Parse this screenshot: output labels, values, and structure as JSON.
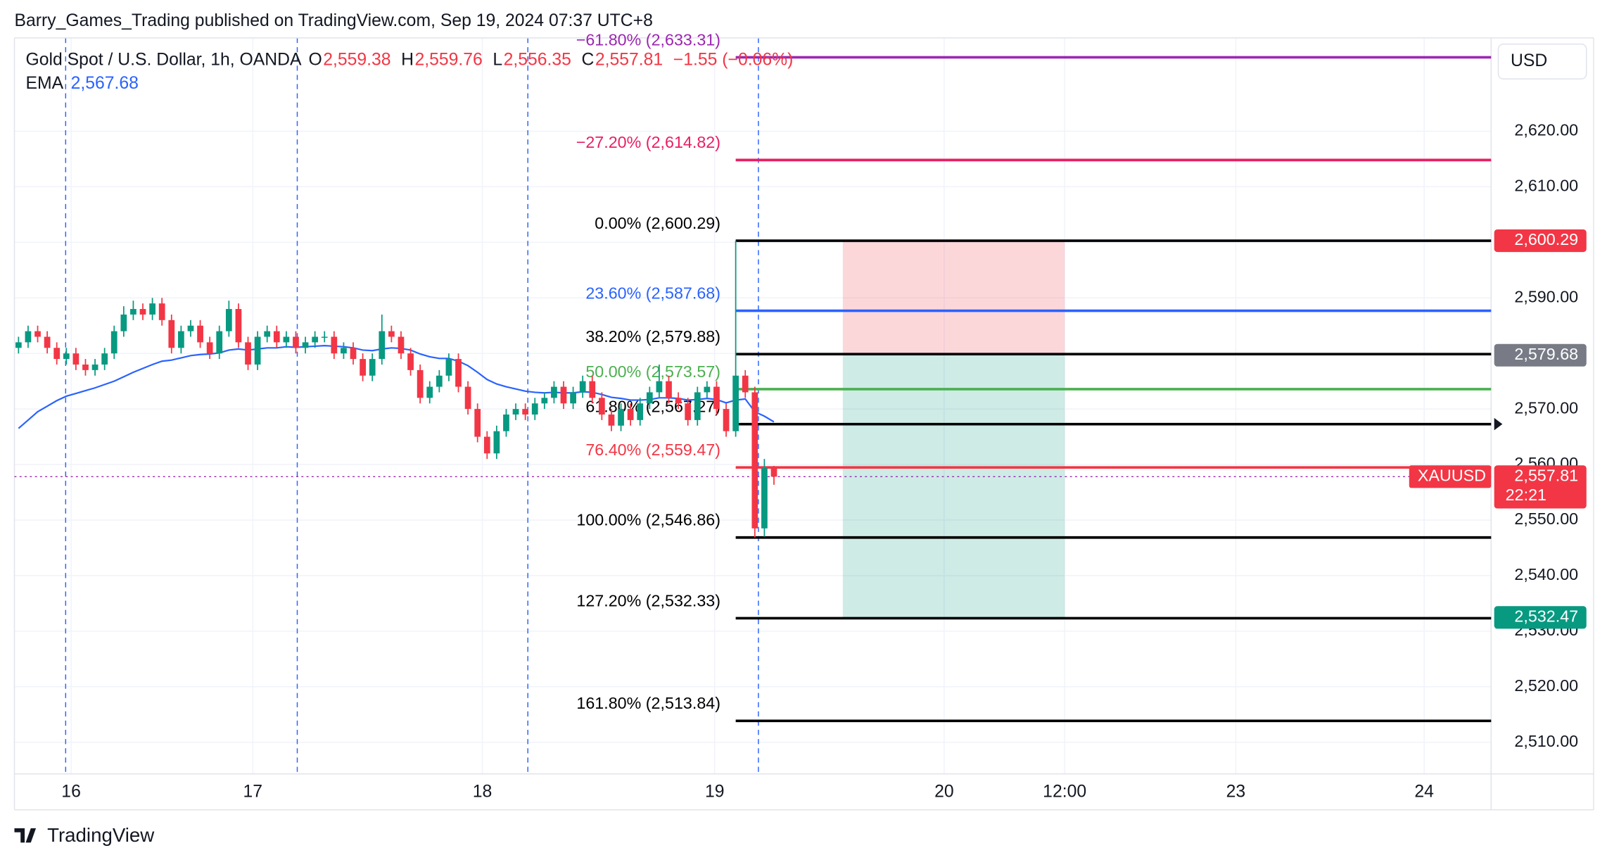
{
  "published": "Barry_Games_Trading published on TradingView.com, Sep 19, 2024 07:37 UTC+8",
  "brand": "TradingView",
  "chart_data": {
    "type": "candlestick",
    "title": "Gold Spot / U.S. Dollar, 1h, OANDA",
    "currency": "USD",
    "up_color": "#089981",
    "down_color": "#f23645",
    "ohlc_legend": [
      {
        "key": "O",
        "label": "2,559.38"
      },
      {
        "key": "H",
        "label": "2,559.76"
      },
      {
        "key": "L",
        "label": "2,556.35"
      },
      {
        "key": "C",
        "label": "2,557.81"
      }
    ],
    "change": {
      "value": -1.55,
      "label": "−1.55 (−0.06%)"
    },
    "x": [
      0,
      1,
      2,
      3,
      4,
      5,
      6,
      7,
      8,
      9,
      10,
      11,
      12,
      13,
      14,
      15,
      16,
      17,
      18,
      19,
      20,
      21,
      22,
      23,
      24,
      25,
      26,
      27,
      28,
      29,
      30,
      31,
      32,
      33,
      34,
      35,
      36,
      37,
      38,
      39,
      40,
      41,
      42,
      43,
      44,
      45,
      46,
      47,
      48,
      49,
      50,
      51,
      52,
      53,
      54,
      55,
      56,
      57,
      58,
      59,
      60,
      61,
      62,
      63,
      64,
      65,
      66,
      67,
      68,
      69,
      70,
      71,
      72,
      73,
      74,
      75,
      76,
      77,
      78,
      79
    ],
    "open": [
      2581,
      2582,
      2584,
      2583,
      2581,
      2579,
      2580,
      2578,
      2577,
      2578,
      2580,
      2584,
      2587,
      2588,
      2587,
      2589,
      2586,
      2581,
      2584,
      2585,
      2582,
      2580,
      2584,
      2588,
      2582,
      2578,
      2583,
      2584,
      2582,
      2583,
      2581,
      2582,
      2583,
      2583,
      2580,
      2581,
      2579,
      2576,
      2579,
      2584,
      2583,
      2580,
      2577,
      2572,
      2574,
      2576,
      2579,
      2574,
      2570,
      2565,
      2562,
      2566,
      2569,
      2570,
      2569,
      2571,
      2572,
      2574,
      2571,
      2573,
      2575,
      2572,
      2569,
      2567,
      2570,
      2568,
      2571,
      2573,
      2575,
      2572,
      2571,
      2568,
      2573,
      2574,
      2570,
      2566,
      2576,
      2573,
      2548.5,
      2559.38
    ],
    "high": [
      2583,
      2585,
      2585,
      2584,
      2582,
      2581,
      2581,
      2579,
      2579,
      2581,
      2585,
      2588.5,
      2589.5,
      2589,
      2590,
      2590,
      2587,
      2585,
      2586,
      2586,
      2583,
      2585,
      2589.5,
      2589,
      2583,
      2584,
      2585,
      2585,
      2584,
      2584,
      2583,
      2584,
      2584,
      2584,
      2582,
      2582,
      2580,
      2580,
      2587,
      2585,
      2584,
      2581,
      2578,
      2575,
      2577,
      2580,
      2580,
      2575,
      2571,
      2566,
      2567,
      2570,
      2571,
      2571,
      2572,
      2573,
      2575,
      2575,
      2574,
      2576,
      2576,
      2573,
      2570,
      2571,
      2571,
      2572,
      2574,
      2578,
      2576,
      2573,
      2572,
      2574,
      2575,
      2575,
      2571,
      2600.29,
      2577,
      2574,
      2561,
      2559.76
    ],
    "low": [
      2580,
      2581,
      2582,
      2580,
      2578,
      2578,
      2577,
      2576,
      2576,
      2577,
      2579,
      2583,
      2586,
      2586,
      2586,
      2585,
      2580,
      2580,
      2583,
      2581,
      2579,
      2579,
      2583,
      2581,
      2577,
      2577,
      2582,
      2581,
      2581,
      2580,
      2580,
      2581,
      2582,
      2579,
      2579,
      2578,
      2575,
      2575,
      2578,
      2582,
      2579,
      2576,
      2571,
      2571,
      2573,
      2575,
      2573,
      2569,
      2564,
      2561,
      2561,
      2565,
      2568,
      2568,
      2568,
      2570,
      2571,
      2570,
      2570,
      2572,
      2571,
      2568,
      2566,
      2566,
      2567,
      2567,
      2570,
      2572,
      2571,
      2570,
      2567,
      2567,
      2572,
      2569,
      2565,
      2565,
      2572,
      2546.86,
      2547,
      2556.35
    ],
    "close": [
      2582,
      2584,
      2583,
      2581,
      2579,
      2580,
      2578,
      2577,
      2578,
      2580,
      2584,
      2587,
      2588,
      2587,
      2589,
      2586,
      2581,
      2584,
      2585,
      2582,
      2580,
      2584,
      2588,
      2582,
      2578,
      2583,
      2584,
      2582,
      2583,
      2581,
      2582,
      2583,
      2583,
      2580,
      2581,
      2579,
      2576,
      2579,
      2584,
      2583,
      2580,
      2577,
      2572,
      2574,
      2576,
      2579,
      2574,
      2570,
      2565,
      2562,
      2566,
      2569,
      2570,
      2569,
      2571,
      2572,
      2574,
      2571,
      2573,
      2575,
      2572,
      2569,
      2567,
      2570,
      2568,
      2571,
      2573,
      2575,
      2572,
      2571,
      2568,
      2573,
      2574,
      2570,
      2566,
      2576,
      2573,
      2548.5,
      2559.36,
      2557.81
    ],
    "ema": {
      "name": "EMA",
      "color": "#2962ff",
      "last_label": "2,567.68",
      "values": [
        2566.5,
        2568,
        2569.5,
        2570.5,
        2571.5,
        2572.3,
        2572.8,
        2573.3,
        2573.8,
        2574.4,
        2575,
        2575.8,
        2576.6,
        2577.3,
        2578,
        2578.6,
        2578.8,
        2579.2,
        2579.6,
        2579.8,
        2579.9,
        2580.1,
        2580.6,
        2580.8,
        2580.6,
        2580.8,
        2581,
        2581,
        2581.2,
        2581.1,
        2581.2,
        2581.3,
        2581.4,
        2581.3,
        2581.2,
        2581,
        2580.6,
        2580.5,
        2580.8,
        2581,
        2580.9,
        2580.6,
        2579.9,
        2579.4,
        2579.1,
        2579.1,
        2578.6,
        2577.8,
        2576.6,
        2575.3,
        2574.5,
        2574,
        2573.6,
        2573.2,
        2573,
        2572.9,
        2573,
        2572.9,
        2572.9,
        2573.1,
        2573,
        2572.6,
        2572.1,
        2571.9,
        2571.6,
        2571.6,
        2571.7,
        2572,
        2572,
        2571.9,
        2571.6,
        2571.7,
        2571.9,
        2571.7,
        2571.1,
        2571.6,
        2571.8,
        2569.5,
        2568.7,
        2567.68
      ]
    },
    "fib": {
      "x_start": 75,
      "levels": [
        {
          "label": "−61.80% (2,633.31)",
          "value": 2633.31,
          "color": "#9c27b0"
        },
        {
          "label": "−27.20% (2,614.82)",
          "value": 2614.82,
          "color": "#e91e63"
        },
        {
          "label": "0.00% (2,600.29)",
          "value": 2600.29,
          "color": "#000000"
        },
        {
          "label": "23.60% (2,587.68)",
          "value": 2587.68,
          "color": "#2962ff"
        },
        {
          "label": "38.20% (2,579.88)",
          "value": 2579.88,
          "color": "#000000"
        },
        {
          "label": "50.00% (2,573.57)",
          "value": 2573.57,
          "color": "#4caf50"
        },
        {
          "label": "61.80% (2,567.27)",
          "value": 2567.27,
          "color": "#000000"
        },
        {
          "label": "76.40% (2,559.47)",
          "value": 2559.47,
          "color": "#f23645"
        },
        {
          "label": "100.00% (2,546.86)",
          "value": 2546.86,
          "color": "#000000"
        },
        {
          "label": "127.20% (2,532.33)",
          "value": 2532.33,
          "color": "#000000"
        },
        {
          "label": "161.80% (2,513.84)",
          "value": 2513.84,
          "color": "#000000"
        }
      ]
    },
    "position": {
      "x": [
        86.2,
        109.4
      ],
      "stop": {
        "value": 2600.29,
        "label": "2,600.29",
        "color": "#f23645"
      },
      "entry": {
        "value": 2579.68,
        "label": "2,579.68",
        "color": "#787b86"
      },
      "target": {
        "value": 2532.47,
        "label": "2,532.47",
        "color": "#089981"
      }
    },
    "last_price": {
      "symbol": "XAUUSD",
      "label": "2,557.81",
      "countdown": "22:21",
      "color": "#f23645"
    },
    "xlim": [
      -0.43,
      154.0
    ],
    "ylim": [
      2504.3,
      2636.8
    ],
    "yticks": [
      {
        "value": 2510,
        "label": "2,510.00"
      },
      {
        "value": 2520,
        "label": "2,520.00"
      },
      {
        "value": 2530,
        "label": "2,530.00"
      },
      {
        "value": 2540,
        "label": "2,540.00"
      },
      {
        "value": 2550,
        "label": "2,550.00"
      },
      {
        "value": 2560,
        "label": "2,560.00"
      },
      {
        "value": 2570,
        "label": "2,570.00"
      },
      {
        "value": 2580,
        "label": "2,580.00"
      },
      {
        "value": 2590,
        "label": "2,590.00"
      },
      {
        "value": 2600,
        "label": "2,600.00"
      },
      {
        "value": 2610,
        "label": "2,610.00"
      },
      {
        "value": 2620,
        "label": "2,620.00"
      }
    ],
    "xticks": [
      {
        "value": 5.5,
        "label": "16"
      },
      {
        "value": 24.5,
        "label": "17"
      },
      {
        "value": 48.5,
        "label": "18"
      },
      {
        "value": 72.8,
        "label": "19"
      },
      {
        "value": 96.8,
        "label": "20"
      },
      {
        "value": 109.4,
        "label": "12:00"
      },
      {
        "value": 127.3,
        "label": "23"
      },
      {
        "value": 147.0,
        "label": "24"
      }
    ],
    "grid": true
  }
}
